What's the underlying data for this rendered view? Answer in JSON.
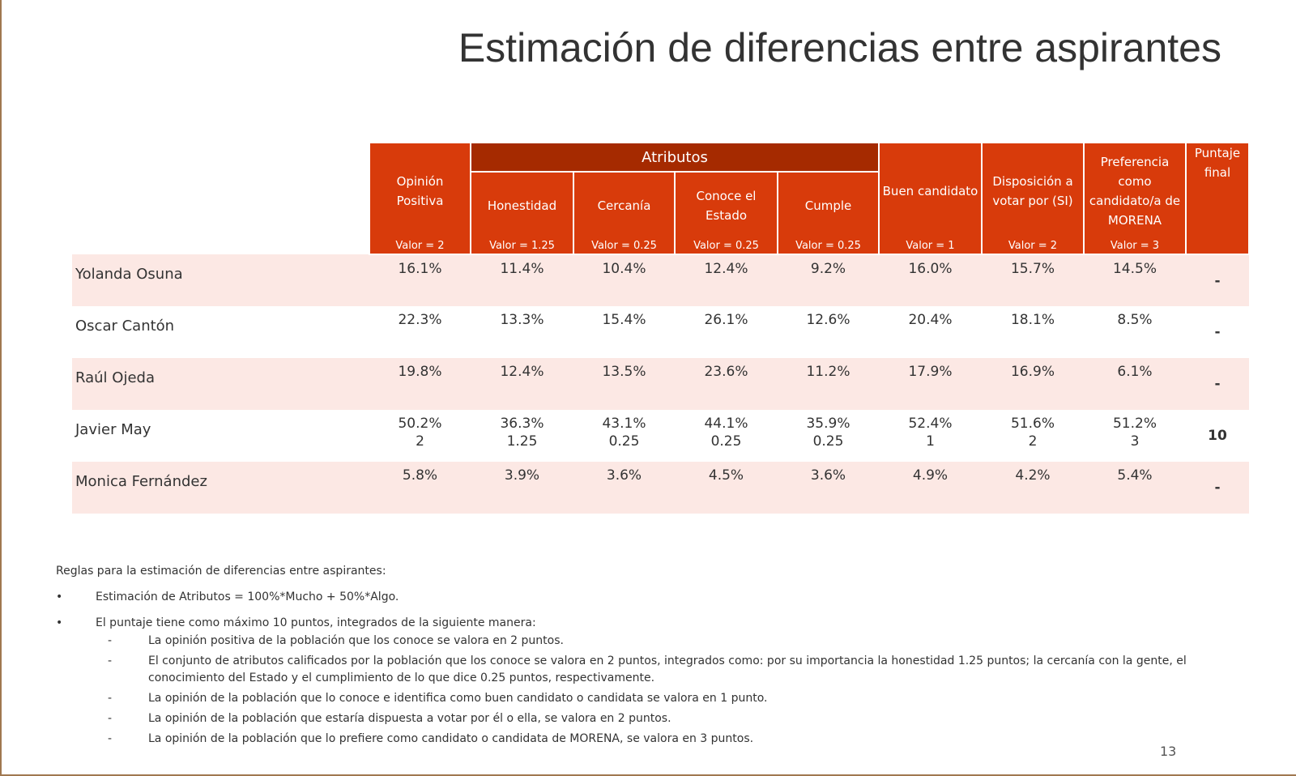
{
  "title": "Estimación de diferencias entre aspirantes",
  "table": {
    "group": "Atributos",
    "columns": [
      {
        "label": "Opinión Positiva",
        "weight": "Valor = 2",
        "grouped": false
      },
      {
        "label": "Honestidad",
        "weight": "Valor = 1.25",
        "grouped": true
      },
      {
        "label": "Cercanía",
        "weight": "Valor = 0.25",
        "grouped": true
      },
      {
        "label": "Conoce el Estado",
        "weight": "Valor = 0.25",
        "grouped": true
      },
      {
        "label": "Cumple",
        "weight": "Valor = 0.25",
        "grouped": true
      },
      {
        "label": "Buen candidato",
        "weight": "Valor = 1",
        "grouped": false
      },
      {
        "label": "Disposición a votar por (SI)",
        "weight": "Valor = 2",
        "grouped": false
      },
      {
        "label": "Preferencia como candidato/a de MORENA",
        "weight": "Valor = 3",
        "grouped": false
      }
    ],
    "score_header": "Puntaje final",
    "rows": [
      {
        "name": "Yolanda Osuna",
        "values": [
          "16.1%",
          "11.4%",
          "10.4%",
          "12.4%",
          "9.2%",
          "16.0%",
          "15.7%",
          "14.5%"
        ],
        "score": "-"
      },
      {
        "name": "Oscar Cantón",
        "values": [
          "22.3%",
          "13.3%",
          "15.4%",
          "26.1%",
          "12.6%",
          "20.4%",
          "18.1%",
          "8.5%"
        ],
        "score": "-"
      },
      {
        "name": "Raúl Ojeda",
        "values": [
          "19.8%",
          "12.4%",
          "13.5%",
          "23.6%",
          "11.2%",
          "17.9%",
          "16.9%",
          "6.1%"
        ],
        "score": "-"
      },
      {
        "name": "Javier May",
        "values": [
          "50.2%",
          "36.3%",
          "43.1%",
          "44.1%",
          "35.9%",
          "52.4%",
          "51.6%",
          "51.2%"
        ],
        "points": [
          "2",
          "1.25",
          "0.25",
          "0.25",
          "0.25",
          "1",
          "2",
          "3"
        ],
        "score": "10"
      },
      {
        "name": "Monica Fernández",
        "values": [
          "5.8%",
          "3.9%",
          "3.6%",
          "4.5%",
          "3.6%",
          "4.9%",
          "4.2%",
          "5.4%"
        ],
        "score": "-"
      }
    ]
  },
  "notes": {
    "heading": "Reglas para la estimación de diferencias entre aspirantes:",
    "bullets": [
      {
        "text": "Estimación de Atributos = 100%*Mucho + 50%*Algo.",
        "sub_items": []
      },
      {
        "text": "El puntaje tiene como máximo 10 puntos, integrados de la siguiente manera:",
        "sub_items": [
          "La opinión positiva de la población que los conoce se valora en 2 puntos.",
          "El conjunto de atributos calificados por la población que los conoce se valora en 2 puntos, integrados como: por su importancia la honestidad 1.25 puntos; la cercanía con la gente, el conocimiento del Estado y el cumplimiento de lo que dice 0.25 puntos, respectivamente.",
          "La opinión de la población que lo conoce e identifica como buen candidato o candidata se valora en 1 punto.",
          "La opinión de la población que estaría dispuesta a votar por él o ella, se valora en 2 puntos.",
          "La opinión de la población que lo prefiere como candidato o candidata de MORENA, se valora en 3 puntos."
        ]
      }
    ]
  },
  "page_number": "13"
}
